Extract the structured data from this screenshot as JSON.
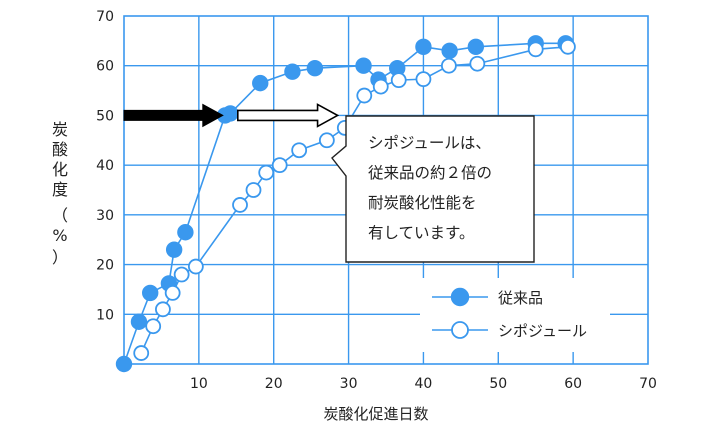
{
  "chart_data": {
    "type": "line",
    "xlabel": "炭酸化促進日数",
    "ylabel": "炭酸化度（%）",
    "xlim": [
      0,
      70
    ],
    "ylim": [
      0,
      70
    ],
    "x_ticks": [
      "10",
      "20",
      "30",
      "40",
      "50",
      "60",
      "70"
    ],
    "y_ticks": [
      "10",
      "20",
      "30",
      "40",
      "50",
      "60",
      "70"
    ],
    "grid": true,
    "legend_position": "bottom-right",
    "series": [
      {
        "name": "従来品",
        "marker": "filled-circle",
        "color": "#3a98ee",
        "points": [
          [
            0,
            0
          ],
          [
            2,
            8.5
          ],
          [
            3.5,
            14.3
          ],
          [
            6,
            16.2
          ],
          [
            6.7,
            23
          ],
          [
            8.2,
            26.5
          ],
          [
            13.5,
            50
          ],
          [
            14.2,
            50.4
          ],
          [
            18.2,
            56.5
          ],
          [
            22.5,
            58.8
          ],
          [
            25.5,
            59.5
          ],
          [
            32,
            60
          ],
          [
            34,
            57.2
          ],
          [
            36.5,
            59.5
          ],
          [
            40,
            63.8
          ],
          [
            43.5,
            63
          ],
          [
            47,
            63.8
          ],
          [
            55,
            64.5
          ],
          [
            59,
            64.5
          ]
        ]
      },
      {
        "name": "シポジュール",
        "marker": "open-circle",
        "color": "#3a98ee",
        "points": [
          [
            2.3,
            2.2
          ],
          [
            3.9,
            7.6
          ],
          [
            5.2,
            11
          ],
          [
            6.5,
            14.3
          ],
          [
            7.7,
            18
          ],
          [
            9.6,
            19.6
          ],
          [
            15.5,
            32
          ],
          [
            17.3,
            35
          ],
          [
            19,
            38.5
          ],
          [
            20.8,
            40
          ],
          [
            23.4,
            43
          ],
          [
            27.1,
            45
          ],
          [
            29.5,
            47.5
          ],
          [
            32.1,
            54
          ],
          [
            34.3,
            55.8
          ],
          [
            36.7,
            57.1
          ],
          [
            40,
            57.3
          ],
          [
            43.4,
            60
          ],
          [
            47.2,
            60.4
          ],
          [
            55,
            63.3
          ],
          [
            59.3,
            63.8
          ]
        ]
      }
    ],
    "arrow": {
      "level": 50,
      "from": 0,
      "to": 14,
      "to_end": 30
    },
    "callout_lines": [
      "シポジュールは、",
      "従来品の約２倍の",
      "耐炭酸化性能を",
      "有しています。"
    ],
    "colors": {
      "accent": "#3a98ee",
      "arrow": "#000000"
    }
  }
}
